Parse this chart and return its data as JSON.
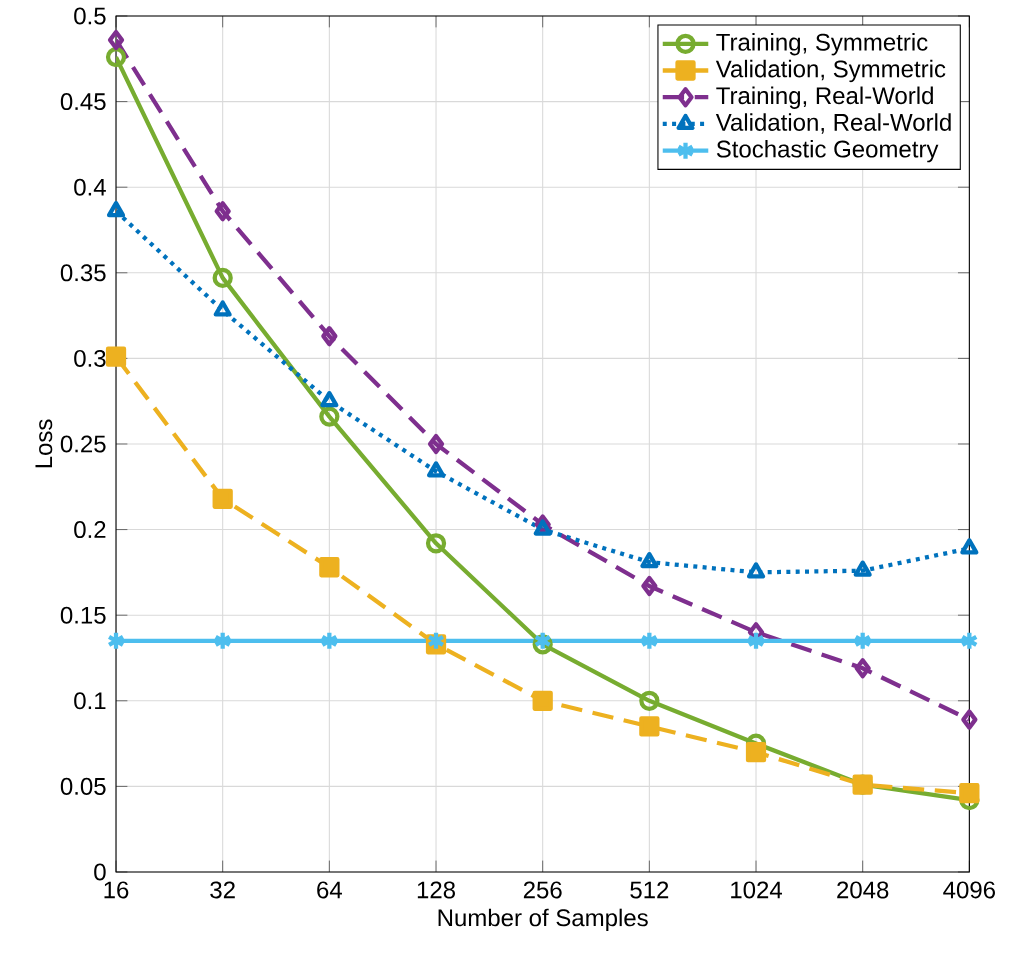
{
  "chart_data": {
    "type": "line",
    "xlabel": "Number of Samples",
    "ylabel": "Loss",
    "x": [
      16,
      32,
      64,
      128,
      256,
      512,
      1024,
      2048,
      4096
    ],
    "log": "x",
    "xlim": [
      16,
      4096
    ],
    "xticks": [
      16,
      32,
      64,
      128,
      256,
      512,
      1024,
      2048,
      4096
    ],
    "ylim": [
      0,
      0.5
    ],
    "yticks": [
      0,
      0.05,
      0.1,
      0.15,
      0.2,
      0.25,
      0.3,
      0.35,
      0.4,
      0.45,
      0.5
    ],
    "grid": true,
    "legend": "top right",
    "series": [
      {
        "name": "Training, Symmetric",
        "color": "#77ac30",
        "marker": "circle",
        "line_style": "solid",
        "values": [
          0.476,
          0.347,
          0.266,
          0.192,
          0.133,
          0.1,
          0.075,
          0.051,
          0.042
        ]
      },
      {
        "name": "Validation, Symmetric",
        "color": "#edb120",
        "marker": "square",
        "line_style": "dashed",
        "values": [
          0.301,
          0.218,
          0.178,
          0.133,
          0.1,
          0.085,
          0.07,
          0.051,
          0.046
        ]
      },
      {
        "name": "Training, Real-World",
        "color": "#7e2f8e",
        "marker": "diamond",
        "line_style": "dashed",
        "values": [
          0.486,
          0.386,
          0.313,
          0.25,
          0.203,
          0.167,
          0.14,
          0.119,
          0.089
        ]
      },
      {
        "name": "Validation, Real-World",
        "color": "#0072bd",
        "marker": "triangle",
        "line_style": "dotted",
        "values": [
          0.386,
          0.328,
          0.275,
          0.234,
          0.2,
          0.181,
          0.175,
          0.176,
          0.189
        ]
      },
      {
        "name": "Stochastic Geometry",
        "color": "#4dbeee",
        "marker": "cross",
        "line_style": "solid",
        "values": [
          0.135,
          0.135,
          0.135,
          0.135,
          0.135,
          0.135,
          0.135,
          0.135,
          0.135
        ]
      }
    ]
  }
}
